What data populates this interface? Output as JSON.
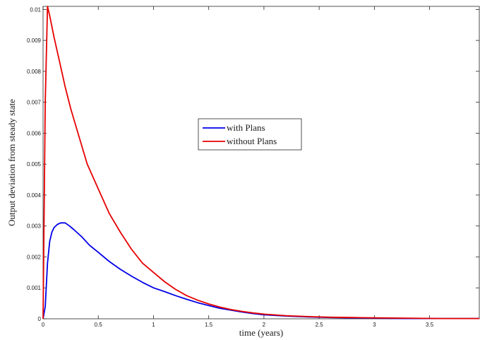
{
  "chart_data": {
    "type": "line",
    "title": "",
    "xlabel": "time (years)",
    "ylabel": "Output deviation from steady state",
    "xlim": [
      0,
      3.95
    ],
    "ylim": [
      0,
      0.0101
    ],
    "x_ticks": [
      {
        "value": 0,
        "label": "0"
      },
      {
        "value": 0.5,
        "label": "0.5"
      },
      {
        "value": 1,
        "label": "1"
      },
      {
        "value": 1.5,
        "label": "1.5"
      },
      {
        "value": 2,
        "label": "2"
      },
      {
        "value": 2.5,
        "label": "2.5"
      },
      {
        "value": 3,
        "label": "3"
      },
      {
        "value": 3.5,
        "label": "3.5"
      }
    ],
    "y_ticks": [
      {
        "value": 0,
        "label": "0"
      },
      {
        "value": 0.001,
        "label": "0.001"
      },
      {
        "value": 0.002,
        "label": "0.002"
      },
      {
        "value": 0.003,
        "label": "0.003"
      },
      {
        "value": 0.004,
        "label": "0.004"
      },
      {
        "value": 0.005,
        "label": "0.005"
      },
      {
        "value": 0.006,
        "label": "0.006"
      },
      {
        "value": 0.007,
        "label": "0.007"
      },
      {
        "value": 0.008,
        "label": "0.008"
      },
      {
        "value": 0.009,
        "label": "0.009"
      },
      {
        "value": 0.01,
        "label": "0.01"
      }
    ],
    "grid": false,
    "legend_position": "center",
    "series": [
      {
        "name": "with Plans",
        "color": "#0000e6",
        "x": [
          0,
          0.02,
          0.04,
          0.06,
          0.08,
          0.1,
          0.13,
          0.16,
          0.2,
          0.24,
          0.28,
          0.35,
          0.42,
          0.5,
          0.6,
          0.7,
          0.8,
          0.9,
          1.0,
          1.1,
          1.2,
          1.3,
          1.4,
          1.5,
          1.6,
          1.7,
          1.8,
          1.9,
          2.0,
          2.2,
          2.4,
          2.6,
          2.8,
          3.0,
          3.3,
          3.6,
          3.95
        ],
        "y": [
          0,
          0.0004,
          0.0018,
          0.0025,
          0.0028,
          0.00295,
          0.00305,
          0.0031,
          0.0031,
          0.003,
          0.00288,
          0.00265,
          0.00238,
          0.00215,
          0.00185,
          0.0016,
          0.00138,
          0.00118,
          0.001,
          0.00088,
          0.00075,
          0.00063,
          0.00052,
          0.00043,
          0.00034,
          0.00028,
          0.00022,
          0.00017,
          0.00013,
          9e-05,
          6e-05,
          4e-05,
          3e-05,
          2e-05,
          1e-05,
          1e-05,
          1e-05
        ]
      },
      {
        "name": "without Plans",
        "color": "#e60000",
        "x": [
          0,
          0.02,
          0.04,
          0.06,
          0.1,
          0.15,
          0.2,
          0.25,
          0.3,
          0.4,
          0.5,
          0.6,
          0.7,
          0.8,
          0.9,
          1.0,
          1.1,
          1.2,
          1.3,
          1.4,
          1.5,
          1.6,
          1.7,
          1.8,
          1.9,
          2.0,
          2.2,
          2.4,
          2.6,
          2.8,
          3.0,
          3.3,
          3.6,
          3.95
        ],
        "y": [
          0,
          0.007,
          0.0101,
          0.0098,
          0.0091,
          0.0083,
          0.0075,
          0.0068,
          0.0062,
          0.005,
          0.0042,
          0.0034,
          0.0028,
          0.00225,
          0.0018,
          0.0015,
          0.0012,
          0.00095,
          0.00075,
          0.0006,
          0.00048,
          0.00038,
          0.0003,
          0.00024,
          0.00019,
          0.00015,
          0.0001,
          7e-05,
          5e-05,
          4e-05,
          3e-05,
          2e-05,
          1e-05,
          1e-05
        ]
      }
    ]
  }
}
